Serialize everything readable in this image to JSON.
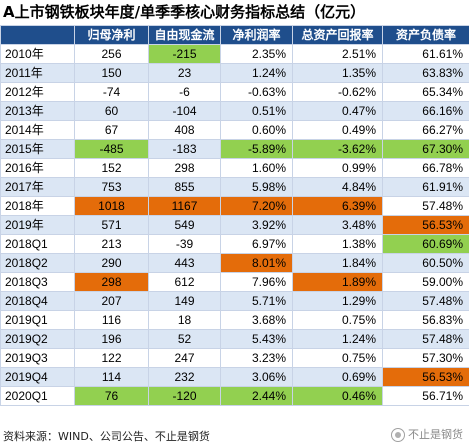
{
  "title": "A上市钢铁板块年度/单季季核心财务指标总结（亿元）",
  "headers": [
    "",
    "归母净利",
    "自由现金流",
    "净利润率",
    "总资产回报率",
    "资产负债率"
  ],
  "rows": [
    {
      "period": "2010年",
      "net_profit": "256",
      "fcf": "-215",
      "net_margin": "2.35%",
      "roa": "2.51%",
      "debt_ratio": "61.61%"
    },
    {
      "period": "2011年",
      "net_profit": "150",
      "fcf": "23",
      "net_margin": "1.24%",
      "roa": "1.35%",
      "debt_ratio": "63.83%"
    },
    {
      "period": "2012年",
      "net_profit": "-74",
      "fcf": "-6",
      "net_margin": "-0.63%",
      "roa": "-0.62%",
      "debt_ratio": "65.34%"
    },
    {
      "period": "2013年",
      "net_profit": "60",
      "fcf": "-104",
      "net_margin": "0.51%",
      "roa": "0.47%",
      "debt_ratio": "66.16%"
    },
    {
      "period": "2014年",
      "net_profit": "67",
      "fcf": "408",
      "net_margin": "0.60%",
      "roa": "0.49%",
      "debt_ratio": "66.27%"
    },
    {
      "period": "2015年",
      "net_profit": "-485",
      "fcf": "-183",
      "net_margin": "-5.89%",
      "roa": "-3.62%",
      "debt_ratio": "67.30%"
    },
    {
      "period": "2016年",
      "net_profit": "152",
      "fcf": "298",
      "net_margin": "1.60%",
      "roa": "0.99%",
      "debt_ratio": "66.78%"
    },
    {
      "period": "2017年",
      "net_profit": "753",
      "fcf": "855",
      "net_margin": "5.98%",
      "roa": "4.84%",
      "debt_ratio": "61.91%"
    },
    {
      "period": "2018年",
      "net_profit": "1018",
      "fcf": "1167",
      "net_margin": "7.20%",
      "roa": "6.39%",
      "debt_ratio": "57.48%"
    },
    {
      "period": "2019年",
      "net_profit": "571",
      "fcf": "549",
      "net_margin": "3.92%",
      "roa": "3.48%",
      "debt_ratio": "56.53%"
    },
    {
      "period": "2018Q1",
      "net_profit": "213",
      "fcf": "-39",
      "net_margin": "6.97%",
      "roa": "1.38%",
      "debt_ratio": "60.69%"
    },
    {
      "period": "2018Q2",
      "net_profit": "290",
      "fcf": "443",
      "net_margin": "8.01%",
      "roa": "1.84%",
      "debt_ratio": "60.50%"
    },
    {
      "period": "2018Q3",
      "net_profit": "298",
      "fcf": "612",
      "net_margin": "7.96%",
      "roa": "1.89%",
      "debt_ratio": "59.00%"
    },
    {
      "period": "2018Q4",
      "net_profit": "207",
      "fcf": "149",
      "net_margin": "5.71%",
      "roa": "1.29%",
      "debt_ratio": "57.48%"
    },
    {
      "period": "2019Q1",
      "net_profit": "116",
      "fcf": "18",
      "net_margin": "3.68%",
      "roa": "0.75%",
      "debt_ratio": "56.83%"
    },
    {
      "period": "2019Q2",
      "net_profit": "196",
      "fcf": "52",
      "net_margin": "5.43%",
      "roa": "1.24%",
      "debt_ratio": "57.48%"
    },
    {
      "period": "2019Q3",
      "net_profit": "122",
      "fcf": "247",
      "net_margin": "3.23%",
      "roa": "0.75%",
      "debt_ratio": "57.30%"
    },
    {
      "period": "2019Q4",
      "net_profit": "114",
      "fcf": "232",
      "net_margin": "3.06%",
      "roa": "0.69%",
      "debt_ratio": "56.53%"
    },
    {
      "period": "2020Q1",
      "net_profit": "76",
      "fcf": "-120",
      "net_margin": "2.44%",
      "roa": "0.46%",
      "debt_ratio": "56.71%"
    }
  ],
  "highlights": {
    "green": [
      "0.fcf",
      "5.net_profit",
      "5.net_margin",
      "5.roa",
      "5.debt_ratio",
      "10.debt_ratio",
      "18.net_profit",
      "18.fcf",
      "18.net_margin",
      "18.roa"
    ],
    "orange": [
      "8.net_profit",
      "8.fcf",
      "8.net_margin",
      "8.roa",
      "9.debt_ratio",
      "11.net_margin",
      "12.net_profit",
      "12.roa",
      "17.debt_ratio"
    ]
  },
  "colors": {
    "header_bg": "#1f4e8c",
    "green": "#92d050",
    "orange": "#e46c0a",
    "stripe": "#dbe6f4"
  },
  "footer": "资料来源：WIND、公司公告、不止是钢货",
  "watermark": "不止是钢货"
}
